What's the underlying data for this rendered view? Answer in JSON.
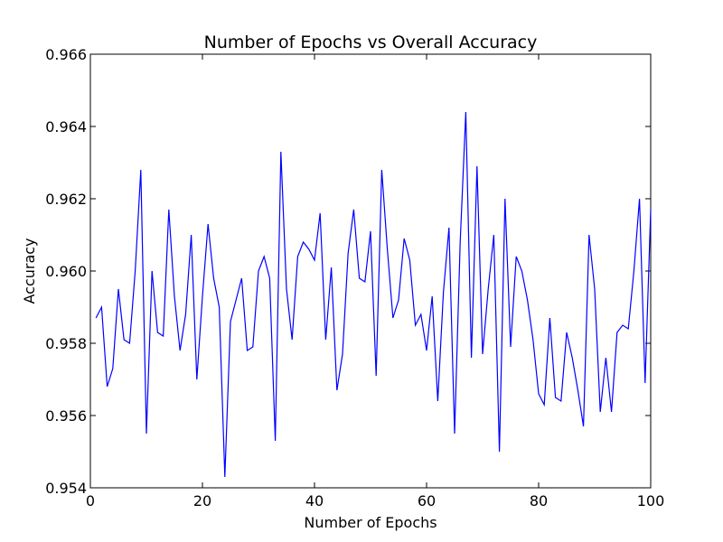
{
  "chart_data": {
    "type": "line",
    "title": "Number of Epochs vs Overall Accuracy",
    "xlabel": "Number of Epochs",
    "ylabel": "Accuracy",
    "xlim": [
      0,
      100
    ],
    "ylim": [
      0.954,
      0.966
    ],
    "x_ticks": [
      0,
      20,
      40,
      60,
      80,
      100
    ],
    "x_tick_labels": [
      "0",
      "20",
      "40",
      "60",
      "80",
      "100"
    ],
    "y_ticks": [
      0.954,
      0.956,
      0.958,
      0.96,
      0.962,
      0.964,
      0.966
    ],
    "y_tick_labels": [
      "0.954",
      "0.956",
      "0.958",
      "0.960",
      "0.962",
      "0.964",
      "0.966"
    ],
    "grid": false,
    "legend": "none",
    "colors": {
      "series": "#0000ff",
      "axes": "#000000",
      "background": "#ffffff"
    },
    "series": [
      {
        "x": [
          1,
          2,
          3,
          4,
          5,
          6,
          7,
          8,
          9,
          10,
          11,
          12,
          13,
          14,
          15,
          16,
          17,
          18,
          19,
          20,
          21,
          22,
          23,
          24,
          25,
          26,
          27,
          28,
          29,
          30,
          31,
          32,
          33,
          34,
          35,
          36,
          37,
          38,
          39,
          40,
          41,
          42,
          43,
          44,
          45,
          46,
          47,
          48,
          49,
          50,
          51,
          52,
          53,
          54,
          55,
          56,
          57,
          58,
          59,
          60,
          61,
          62,
          63,
          64,
          65,
          66,
          67,
          68,
          69,
          70,
          71,
          72,
          73,
          74,
          75,
          76,
          77,
          78,
          79,
          80,
          81,
          82,
          83,
          84,
          85,
          86,
          87,
          88,
          89,
          90,
          91,
          92,
          93,
          94,
          95,
          96,
          97,
          98,
          99,
          100
        ],
        "values": [
          0.9587,
          0.959,
          0.9568,
          0.9573,
          0.9595,
          0.9581,
          0.958,
          0.96,
          0.9628,
          0.9555,
          0.96,
          0.9583,
          0.9582,
          0.9617,
          0.9593,
          0.9578,
          0.9588,
          0.961,
          0.957,
          0.9593,
          0.9613,
          0.9598,
          0.959,
          0.9543,
          0.9586,
          0.9592,
          0.9598,
          0.9578,
          0.9579,
          0.96,
          0.9604,
          0.9598,
          0.9553,
          0.9633,
          0.9595,
          0.9581,
          0.9604,
          0.9608,
          0.9606,
          0.9603,
          0.9616,
          0.9581,
          0.9601,
          0.9567,
          0.9577,
          0.9605,
          0.9617,
          0.9598,
          0.9597,
          0.9611,
          0.9571,
          0.9628,
          0.9606,
          0.9587,
          0.9592,
          0.9609,
          0.9603,
          0.9585,
          0.9588,
          0.9578,
          0.9593,
          0.9564,
          0.9594,
          0.9612,
          0.9555,
          0.9608,
          0.9644,
          0.9576,
          0.9629,
          0.9577,
          0.9595,
          0.961,
          0.955,
          0.962,
          0.9579,
          0.9604,
          0.96,
          0.9592,
          0.9581,
          0.9566,
          0.9563,
          0.9587,
          0.9565,
          0.9564,
          0.9583,
          0.9576,
          0.9567,
          0.9557,
          0.961,
          0.9595,
          0.9561,
          0.9576,
          0.9561,
          0.9583,
          0.9585,
          0.9584,
          0.96,
          0.962,
          0.9569,
          0.9617
        ]
      }
    ]
  }
}
